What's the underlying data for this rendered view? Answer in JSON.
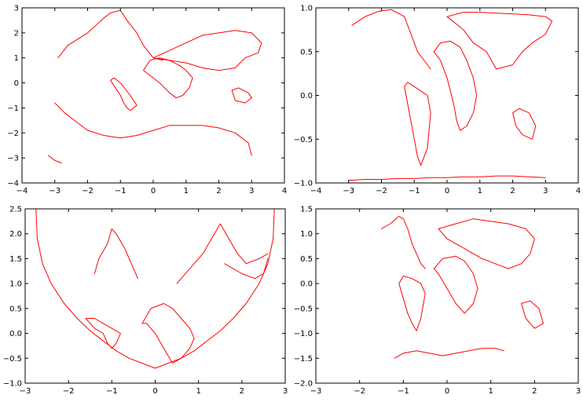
{
  "chart_data": [
    {
      "type": "line",
      "title": "",
      "xlabel": "",
      "ylabel": "",
      "xlim": [
        -4,
        4
      ],
      "ylim": [
        -4,
        3
      ],
      "xticks": [
        "−4",
        "−3",
        "−2",
        "−1",
        "0",
        "1",
        "2",
        "3",
        "4"
      ],
      "yticks": [
        "−4",
        "−3",
        "−2",
        "−1",
        "0",
        "1",
        "2",
        "3"
      ],
      "grid": false,
      "series": [
        {
          "color": "#ff0000",
          "x": [
            -3.0,
            -2.7,
            -2.3,
            -2.0,
            -1.5,
            -1.0,
            -0.5,
            0.0,
            0.5,
            1.0,
            1.5,
            2.0,
            2.5,
            2.9,
            3.0
          ],
          "y": [
            -0.8,
            -1.2,
            -1.6,
            -1.9,
            -2.1,
            -2.2,
            -2.1,
            -1.9,
            -1.7,
            -1.7,
            -1.7,
            -1.8,
            -2.0,
            -2.4,
            -2.9
          ]
        },
        {
          "color": "#ff0000",
          "x": [
            -3.2,
            -3.0,
            -2.8
          ],
          "y": [
            -2.9,
            -3.1,
            -3.2
          ]
        },
        {
          "color": "#ff0000",
          "x": [
            -2.9,
            -2.6,
            -2.0,
            -1.5,
            -1.3,
            -1.0,
            -0.8,
            -0.5,
            -0.3,
            0.0,
            0.3
          ],
          "y": [
            1.0,
            1.5,
            2.0,
            2.6,
            2.8,
            2.9,
            2.5,
            2.0,
            1.5,
            1.0,
            0.9
          ]
        },
        {
          "color": "#ff0000",
          "x": [
            -1.3,
            -1.2,
            -1.0,
            -0.9,
            -0.8,
            -0.7,
            -0.5,
            -0.7,
            -1.0,
            -1.1,
            -1.2,
            -1.3
          ],
          "y": [
            0.1,
            -0.1,
            -0.5,
            -0.8,
            -1.0,
            -1.1,
            -0.9,
            -0.5,
            0.0,
            0.1,
            0.2,
            0.1
          ]
        },
        {
          "color": "#ff0000",
          "x": [
            -0.3,
            -0.1,
            0.2,
            0.5,
            0.8,
            1.0,
            1.2,
            1.1,
            0.9,
            0.7,
            0.5,
            0.2,
            -0.1,
            -0.3
          ],
          "y": [
            0.5,
            0.9,
            1.0,
            0.9,
            0.7,
            0.5,
            0.2,
            -0.2,
            -0.5,
            -0.6,
            -0.4,
            0.0,
            0.3,
            0.5
          ]
        },
        {
          "color": "#ff0000",
          "x": [
            0.0,
            0.5,
            1.0,
            1.5,
            2.0,
            2.5,
            3.0,
            3.3,
            3.2,
            2.8,
            2.5,
            2.0,
            1.5,
            1.0,
            0.5,
            0.0
          ],
          "y": [
            1.0,
            1.3,
            1.6,
            1.9,
            2.0,
            2.1,
            2.0,
            1.6,
            1.2,
            1.0,
            0.6,
            0.5,
            0.6,
            0.8,
            0.9,
            1.0
          ]
        },
        {
          "color": "#ff0000",
          "x": [
            2.4,
            2.6,
            2.9,
            3.0,
            2.8,
            2.5,
            2.4
          ],
          "y": [
            -0.3,
            -0.2,
            -0.4,
            -0.6,
            -0.8,
            -0.7,
            -0.3
          ]
        }
      ]
    },
    {
      "type": "line",
      "title": "",
      "xlabel": "",
      "ylabel": "",
      "xlim": [
        -4,
        4
      ],
      "ylim": [
        -1.0,
        1.0
      ],
      "xticks": [
        "−4",
        "−3",
        "−2",
        "−1",
        "0",
        "1",
        "2",
        "3",
        "4"
      ],
      "yticks": [
        "−1.0",
        "−0.5",
        "0.0",
        "0.5",
        "1.0"
      ],
      "grid": false,
      "series": [
        {
          "color": "#ff0000",
          "x": [
            -3.0,
            -2.5,
            -2.0,
            -1.5,
            -1.0,
            -0.5,
            0.0,
            0.5,
            1.0,
            1.5,
            2.0,
            2.5,
            3.0
          ],
          "y": [
            -0.97,
            -0.96,
            -0.96,
            -0.95,
            -0.95,
            -0.94,
            -0.94,
            -0.93,
            -0.93,
            -0.92,
            -0.92,
            -0.93,
            -0.94
          ]
        },
        {
          "color": "#ff0000",
          "x": [
            -2.9,
            -2.5,
            -2.1,
            -1.7,
            -1.3,
            -1.1,
            -0.9,
            -0.6,
            -0.5
          ],
          "y": [
            0.8,
            0.9,
            0.96,
            0.98,
            0.9,
            0.7,
            0.5,
            0.35,
            0.3
          ]
        },
        {
          "color": "#ff0000",
          "x": [
            -1.3,
            -1.2,
            -1.1,
            -1.0,
            -0.9,
            -0.8,
            -0.6,
            -0.5,
            -0.6,
            -0.8,
            -1.0,
            -1.2,
            -1.3
          ],
          "y": [
            0.1,
            -0.1,
            -0.3,
            -0.5,
            -0.7,
            -0.8,
            -0.6,
            -0.2,
            0.0,
            0.05,
            0.1,
            0.15,
            0.1
          ]
        },
        {
          "color": "#ff0000",
          "x": [
            -0.4,
            -0.2,
            0.1,
            0.4,
            0.6,
            0.8,
            0.9,
            0.8,
            0.6,
            0.4,
            0.3,
            0.2,
            0.0,
            -0.2,
            -0.4
          ],
          "y": [
            0.5,
            0.6,
            0.62,
            0.55,
            0.4,
            0.2,
            0.0,
            -0.2,
            -0.35,
            -0.4,
            -0.3,
            -0.1,
            0.2,
            0.4,
            0.5
          ]
        },
        {
          "color": "#ff0000",
          "x": [
            0.0,
            0.5,
            1.0,
            1.5,
            2.0,
            2.5,
            3.0,
            3.2,
            3.0,
            2.6,
            2.3,
            2.0,
            1.5,
            1.2,
            0.8,
            0.5,
            0.0
          ],
          "y": [
            0.9,
            0.95,
            0.95,
            0.94,
            0.93,
            0.92,
            0.9,
            0.85,
            0.7,
            0.6,
            0.5,
            0.35,
            0.3,
            0.5,
            0.6,
            0.75,
            0.9
          ]
        },
        {
          "color": "#ff0000",
          "x": [
            2.0,
            2.2,
            2.5,
            2.7,
            2.6,
            2.3,
            2.1,
            2.0
          ],
          "y": [
            -0.2,
            -0.15,
            -0.2,
            -0.35,
            -0.5,
            -0.45,
            -0.35,
            -0.2
          ]
        }
      ]
    },
    {
      "type": "line",
      "title": "",
      "xlabel": "",
      "ylabel": "",
      "xlim": [
        -3,
        3
      ],
      "ylim": [
        -1.0,
        2.5
      ],
      "xticks": [
        "−3",
        "−2",
        "−1",
        "0",
        "1",
        "2",
        "3"
      ],
      "yticks": [
        "−1.0",
        "−0.5",
        "0.0",
        "0.5",
        "1.0",
        "1.5",
        "2.0",
        "2.5"
      ],
      "grid": false,
      "series": [
        {
          "color": "#ff0000",
          "x": [
            -2.75,
            -2.72,
            -2.6,
            -2.4,
            -2.1,
            -1.8,
            -1.5,
            -1.2,
            -0.9,
            -0.6,
            -0.3,
            0.0,
            0.3,
            0.6,
            0.9,
            1.2,
            1.5,
            1.8,
            2.1,
            2.4,
            2.6,
            2.72,
            2.75
          ],
          "y": [
            2.5,
            1.9,
            1.4,
            1.0,
            0.6,
            0.3,
            0.05,
            -0.15,
            -0.35,
            -0.5,
            -0.6,
            -0.7,
            -0.6,
            -0.5,
            -0.35,
            -0.15,
            0.05,
            0.3,
            0.6,
            1.0,
            1.4,
            1.9,
            2.5
          ]
        },
        {
          "color": "#ff0000",
          "x": [
            -1.6,
            -1.4,
            -1.2,
            -1.1,
            -1.0,
            -0.9,
            -0.8,
            -1.0,
            -1.2,
            -1.4,
            -1.6
          ],
          "y": [
            0.3,
            0.1,
            0.0,
            -0.2,
            -0.3,
            -0.2,
            0.0,
            0.1,
            0.2,
            0.3,
            0.3
          ]
        },
        {
          "color": "#ff0000",
          "x": [
            -1.4,
            -1.3,
            -1.1,
            -1.0,
            -0.9,
            -0.7,
            -0.6,
            -0.5,
            -0.4
          ],
          "y": [
            1.2,
            1.5,
            1.8,
            2.1,
            2.0,
            1.7,
            1.5,
            1.3,
            1.1
          ]
        },
        {
          "color": "#ff0000",
          "x": [
            -0.3,
            -0.1,
            0.2,
            0.4,
            0.6,
            0.8,
            0.9,
            0.8,
            0.6,
            0.4,
            0.2,
            0.0,
            -0.2,
            -0.3
          ],
          "y": [
            0.2,
            0.5,
            0.6,
            0.5,
            0.3,
            0.1,
            -0.1,
            -0.3,
            -0.5,
            -0.6,
            -0.3,
            0.0,
            0.2,
            0.2
          ]
        },
        {
          "color": "#ff0000",
          "x": [
            0.5,
            0.8,
            1.1,
            1.3,
            1.5,
            1.7,
            1.9,
            2.1,
            2.4,
            2.6
          ],
          "y": [
            1.0,
            1.3,
            1.6,
            1.9,
            2.2,
            1.9,
            1.6,
            1.4,
            1.5,
            1.6
          ]
        },
        {
          "color": "#ff0000",
          "x": [
            1.6,
            2.0,
            2.3,
            2.5,
            2.6
          ],
          "y": [
            1.4,
            1.2,
            1.1,
            1.2,
            1.5
          ]
        }
      ]
    },
    {
      "type": "line",
      "title": "",
      "xlabel": "",
      "ylabel": "",
      "xlim": [
        -3,
        3
      ],
      "ylim": [
        -2.0,
        1.5
      ],
      "xticks": [
        "−3",
        "−2",
        "−1",
        "0",
        "1",
        "2",
        "3"
      ],
      "yticks": [
        "−2.0",
        "−1.5",
        "−1.0",
        "−0.5",
        "0.0",
        "0.5",
        "1.0",
        "1.5"
      ],
      "grid": false,
      "series": [
        {
          "color": "#ff0000",
          "x": [
            -1.2,
            -1.0,
            -0.7,
            -0.4,
            -0.1,
            0.2,
            0.5,
            0.8,
            1.1,
            1.3
          ],
          "y": [
            -1.5,
            -1.4,
            -1.35,
            -1.4,
            -1.45,
            -1.4,
            -1.35,
            -1.3,
            -1.3,
            -1.35
          ]
        },
        {
          "color": "#ff0000",
          "x": [
            -1.5,
            -1.3,
            -1.1,
            -1.0,
            -0.9,
            -0.8,
            -0.7,
            -0.6,
            -0.5
          ],
          "y": [
            1.1,
            1.2,
            1.35,
            1.3,
            1.1,
            0.8,
            0.6,
            0.4,
            0.3
          ]
        },
        {
          "color": "#ff0000",
          "x": [
            -1.1,
            -1.0,
            -0.9,
            -0.8,
            -0.7,
            -0.6,
            -0.5,
            -0.6,
            -0.8,
            -1.0,
            -1.1
          ],
          "y": [
            0.0,
            -0.3,
            -0.6,
            -0.8,
            -0.95,
            -0.7,
            -0.2,
            0.0,
            0.1,
            0.15,
            0.0
          ]
        },
        {
          "color": "#ff0000",
          "x": [
            -0.3,
            -0.1,
            0.2,
            0.4,
            0.6,
            0.7,
            0.6,
            0.4,
            0.2,
            0.0,
            -0.2,
            -0.3
          ],
          "y": [
            0.3,
            0.5,
            0.55,
            0.45,
            0.2,
            -0.1,
            -0.4,
            -0.6,
            -0.4,
            -0.1,
            0.2,
            0.3
          ]
        },
        {
          "color": "#ff0000",
          "x": [
            -0.2,
            0.2,
            0.6,
            1.0,
            1.4,
            1.8,
            2.0,
            1.9,
            1.7,
            1.4,
            1.1,
            0.8,
            0.4,
            0.0,
            -0.2
          ],
          "y": [
            1.1,
            1.2,
            1.3,
            1.25,
            1.2,
            1.1,
            0.9,
            0.6,
            0.4,
            0.3,
            0.4,
            0.5,
            0.7,
            0.9,
            1.1
          ]
        },
        {
          "color": "#ff0000",
          "x": [
            1.7,
            1.9,
            2.1,
            2.2,
            2.0,
            1.8,
            1.7
          ],
          "y": [
            -0.4,
            -0.35,
            -0.5,
            -0.8,
            -0.9,
            -0.7,
            -0.4
          ]
        }
      ]
    }
  ]
}
